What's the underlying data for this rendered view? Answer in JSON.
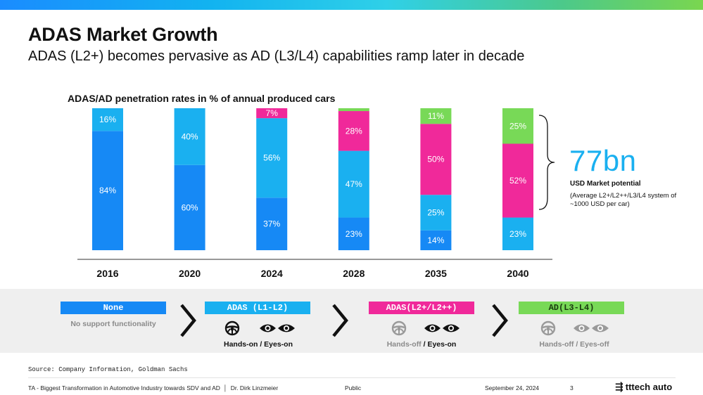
{
  "header": {
    "title": "ADAS Market Growth",
    "subtitle": "ADAS (L2+) becomes pervasive as AD (L3/L4) capabilities ramp later in decade"
  },
  "chart_data": {
    "type": "bar",
    "stacked": true,
    "title": "ADAS/AD penetration rates in % of annual produced cars",
    "categories": [
      "2016",
      "2020",
      "2024",
      "2028",
      "2035",
      "2040"
    ],
    "ylim": [
      0,
      100
    ],
    "grid": false,
    "series": [
      {
        "name": "None",
        "color": "#1689f5",
        "values": [
          84,
          60,
          37,
          23,
          14,
          0
        ],
        "labels": [
          "84%",
          "60%",
          "37%",
          "23%",
          "14%",
          ""
        ]
      },
      {
        "name": "ADAS (L1-L2)",
        "color": "#1ab0f0",
        "values": [
          16,
          40,
          56,
          47,
          25,
          23
        ],
        "labels": [
          "16%",
          "40%",
          "56%",
          "47%",
          "25%",
          "23%"
        ]
      },
      {
        "name": "ADAS(L2+/L2++)",
        "color": "#f0299a",
        "values": [
          0,
          0,
          7,
          28,
          50,
          52
        ],
        "labels": [
          "",
          "",
          "7%",
          "28%",
          "50%",
          "52%"
        ]
      },
      {
        "name": "AD(L3-L4)",
        "color": "#78d957",
        "values": [
          0,
          0,
          0,
          2,
          11,
          25
        ],
        "labels": [
          "",
          "",
          "",
          "",
          "11%",
          "25%"
        ]
      }
    ]
  },
  "market": {
    "value": "77bn",
    "label": "USD Market potential",
    "note": "(Average L2+/L2++/L3/L4 system of ~1000 USD per car)"
  },
  "levels": {
    "none": {
      "label": "None",
      "text": "No support functionality"
    },
    "adas": {
      "label": "ADAS (L1-L2)",
      "caption_a": "Hands-on / Eyes-on",
      "caption_b": ""
    },
    "adas_plus": {
      "label": "ADAS(L2+/L2++)",
      "caption_a": "Hands-off",
      "caption_b": " / Eyes-on"
    },
    "ad": {
      "label": "AD(L3-L4)",
      "caption_a": "Hands-off / Eyes-off",
      "caption_b": ""
    }
  },
  "icons": [
    "steering-wheel-icon",
    "eyes-icon",
    "chevron-right-icon",
    "tttech-auto-logo-icon"
  ],
  "colors": {
    "accent_blue": "#1ab0f0",
    "dark_blue": "#1689f5",
    "magenta": "#f0299a",
    "green": "#78d957",
    "grey_text": "#8a8a8a"
  },
  "footer": {
    "source": "Source: Company Information, Goldman Sachs",
    "left": "TA - Biggest Transformation in Automotive Industry towards SDV and AD",
    "author": "Dr. Dirk Linzmeier",
    "classification": "Public",
    "date": "September 24, 2024",
    "page": "3",
    "brand": "tttech auto"
  }
}
